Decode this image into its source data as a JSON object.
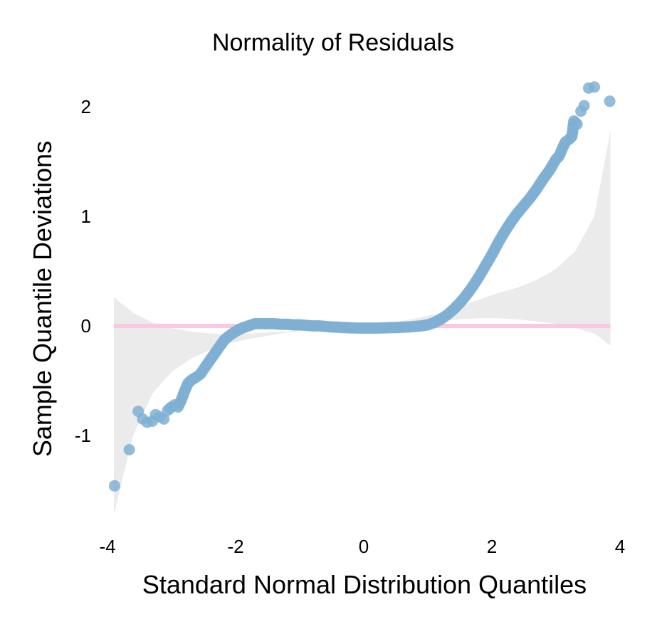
{
  "chart_data": {
    "type": "scatter",
    "title": "Normality of Residuals",
    "xlabel": "Standard Normal Distribution Quantiles",
    "ylabel": "Sample Quantile Deviations",
    "xlim": [
      -4,
      4
    ],
    "ylim": [
      -1.8,
      2.35
    ],
    "x_ticks": [
      -4,
      -2,
      0,
      2,
      4
    ],
    "y_ticks": [
      -1,
      0,
      1,
      2
    ],
    "grid": false,
    "reference_line": {
      "y": 0,
      "color": "#f9c8e1"
    },
    "point_color": "#7fb0d4",
    "band_color": "#ebebeb",
    "confidence_band": {
      "x": [
        -3.9,
        -3.6,
        -3.3,
        -3.0,
        -2.7,
        -2.4,
        -2.1,
        -1.8,
        -1.5,
        -1.2,
        -0.9,
        -0.6,
        -0.3,
        0.0,
        0.3,
        0.6,
        0.9,
        1.2,
        1.5,
        1.8,
        2.1,
        2.4,
        2.7,
        3.0,
        3.3,
        3.6,
        3.85
      ],
      "upper": [
        0.26,
        0.12,
        0.03,
        -0.02,
        -0.05,
        -0.07,
        -0.08,
        -0.07,
        -0.06,
        -0.05,
        -0.035,
        -0.02,
        -0.01,
        0.0,
        0.02,
        0.045,
        0.08,
        0.12,
        0.18,
        0.24,
        0.3,
        0.35,
        0.42,
        0.52,
        0.68,
        1.0,
        1.78
      ],
      "lower": [
        -1.72,
        -1.0,
        -0.62,
        -0.42,
        -0.3,
        -0.22,
        -0.16,
        -0.12,
        -0.09,
        -0.06,
        -0.04,
        -0.025,
        -0.012,
        0.0,
        0.01,
        0.02,
        0.035,
        0.05,
        0.06,
        0.07,
        0.07,
        0.06,
        0.04,
        0.02,
        -0.02,
        -0.07,
        -0.18
      ]
    },
    "points": [
      {
        "x": -3.89,
        "y": -1.46
      },
      {
        "x": -3.66,
        "y": -1.13
      },
      {
        "x": -3.52,
        "y": -0.78
      },
      {
        "x": -3.45,
        "y": -0.85
      },
      {
        "x": -3.38,
        "y": -0.88
      },
      {
        "x": -3.3,
        "y": -0.87
      },
      {
        "x": -3.25,
        "y": -0.81
      },
      {
        "x": -3.18,
        "y": -0.83
      },
      {
        "x": -3.12,
        "y": -0.85
      },
      {
        "x": -3.06,
        "y": -0.77
      },
      {
        "x": -3.0,
        "y": -0.74
      },
      {
        "x": -2.95,
        "y": -0.72
      },
      {
        "x": -2.9,
        "y": -0.74
      },
      {
        "x": -2.85,
        "y": -0.68
      },
      {
        "x": -2.8,
        "y": -0.6
      },
      {
        "x": -2.74,
        "y": -0.52
      },
      {
        "x": -2.68,
        "y": -0.49
      },
      {
        "x": -2.62,
        "y": -0.47
      },
      {
        "x": -2.55,
        "y": -0.44
      },
      {
        "x": -2.48,
        "y": -0.38
      },
      {
        "x": -2.42,
        "y": -0.33
      },
      {
        "x": -2.36,
        "y": -0.28
      },
      {
        "x": -2.3,
        "y": -0.23
      },
      {
        "x": -2.24,
        "y": -0.18
      },
      {
        "x": -2.18,
        "y": -0.13
      },
      {
        "x": -2.1,
        "y": -0.09
      },
      {
        "x": -2.0,
        "y": -0.05
      },
      {
        "x": -1.9,
        "y": -0.02
      },
      {
        "x": -1.8,
        "y": 0.0
      },
      {
        "x": -1.7,
        "y": 0.02
      },
      {
        "x": -1.6,
        "y": 0.02
      },
      {
        "x": -1.5,
        "y": 0.02
      },
      {
        "x": -1.4,
        "y": 0.02
      },
      {
        "x": -1.3,
        "y": 0.015
      },
      {
        "x": -1.2,
        "y": 0.015
      },
      {
        "x": -1.1,
        "y": 0.01
      },
      {
        "x": -1.0,
        "y": 0.01
      },
      {
        "x": -0.9,
        "y": 0.005
      },
      {
        "x": -0.8,
        "y": 0.0
      },
      {
        "x": -0.7,
        "y": 0.0
      },
      {
        "x": -0.6,
        "y": -0.005
      },
      {
        "x": -0.5,
        "y": -0.01
      },
      {
        "x": -0.4,
        "y": -0.012
      },
      {
        "x": -0.3,
        "y": -0.015
      },
      {
        "x": -0.2,
        "y": -0.018
      },
      {
        "x": -0.1,
        "y": -0.02
      },
      {
        "x": 0.0,
        "y": -0.02
      },
      {
        "x": 0.1,
        "y": -0.02
      },
      {
        "x": 0.2,
        "y": -0.02
      },
      {
        "x": 0.3,
        "y": -0.018
      },
      {
        "x": 0.4,
        "y": -0.016
      },
      {
        "x": 0.5,
        "y": -0.015
      },
      {
        "x": 0.6,
        "y": -0.012
      },
      {
        "x": 0.7,
        "y": -0.01
      },
      {
        "x": 0.8,
        "y": -0.005
      },
      {
        "x": 0.9,
        "y": 0.0
      },
      {
        "x": 1.0,
        "y": 0.01
      },
      {
        "x": 1.1,
        "y": 0.03
      },
      {
        "x": 1.2,
        "y": 0.06
      },
      {
        "x": 1.3,
        "y": 0.1
      },
      {
        "x": 1.4,
        "y": 0.15
      },
      {
        "x": 1.5,
        "y": 0.21
      },
      {
        "x": 1.6,
        "y": 0.28
      },
      {
        "x": 1.7,
        "y": 0.36
      },
      {
        "x": 1.8,
        "y": 0.45
      },
      {
        "x": 1.9,
        "y": 0.55
      },
      {
        "x": 2.0,
        "y": 0.65
      },
      {
        "x": 2.1,
        "y": 0.76
      },
      {
        "x": 2.2,
        "y": 0.86
      },
      {
        "x": 2.3,
        "y": 0.95
      },
      {
        "x": 2.4,
        "y": 1.03
      },
      {
        "x": 2.5,
        "y": 1.1
      },
      {
        "x": 2.6,
        "y": 1.17
      },
      {
        "x": 2.7,
        "y": 1.25
      },
      {
        "x": 2.8,
        "y": 1.34
      },
      {
        "x": 2.9,
        "y": 1.42
      },
      {
        "x": 3.0,
        "y": 1.52
      },
      {
        "x": 3.05,
        "y": 1.55
      },
      {
        "x": 3.1,
        "y": 1.62
      },
      {
        "x": 3.15,
        "y": 1.68
      },
      {
        "x": 3.2,
        "y": 1.7
      },
      {
        "x": 3.25,
        "y": 1.73
      },
      {
        "x": 3.28,
        "y": 1.87
      },
      {
        "x": 3.33,
        "y": 1.84
      },
      {
        "x": 3.39,
        "y": 1.96
      },
      {
        "x": 3.44,
        "y": 2.01
      },
      {
        "x": 3.51,
        "y": 2.17
      },
      {
        "x": 3.6,
        "y": 2.18
      },
      {
        "x": 3.84,
        "y": 2.05
      }
    ]
  }
}
